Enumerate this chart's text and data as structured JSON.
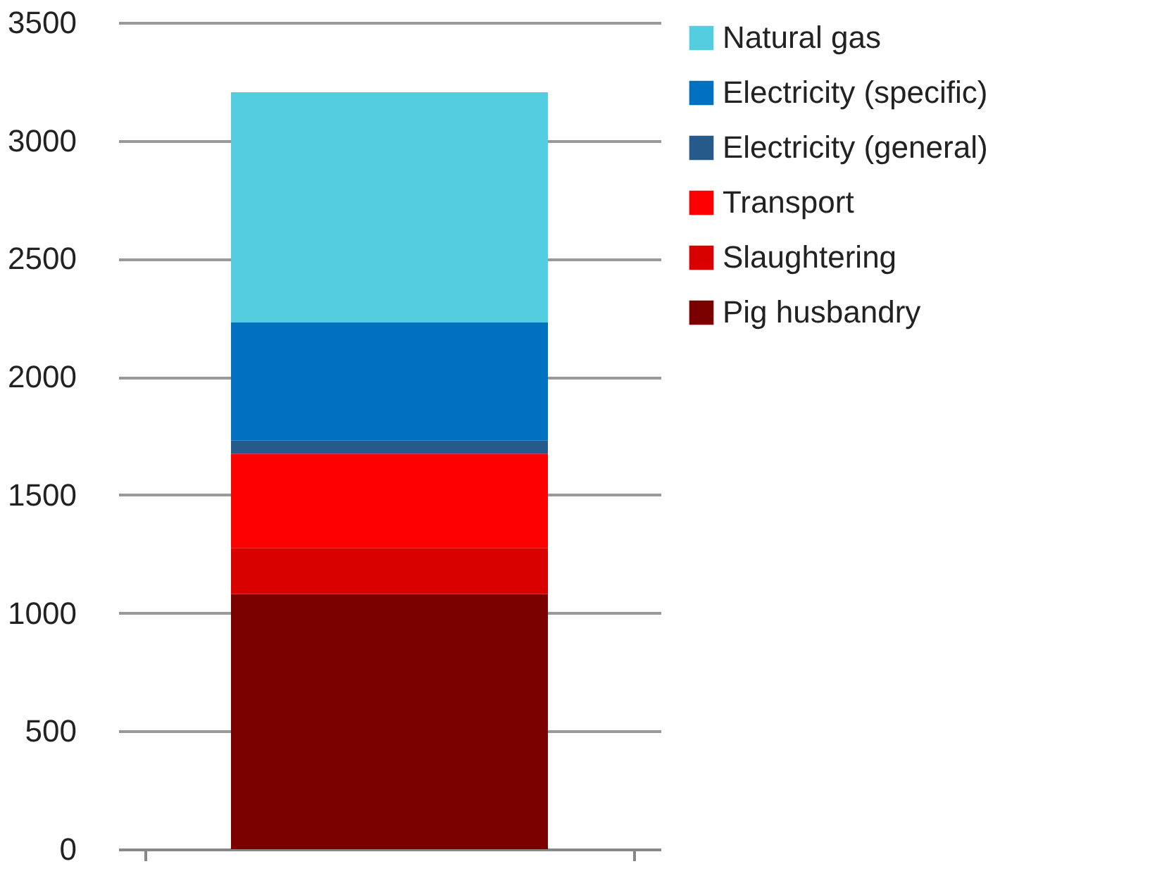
{
  "chart_data": {
    "type": "bar",
    "stacked": true,
    "categories": [
      null
    ],
    "series": [
      {
        "name": "Pig husbandry",
        "color": "#7b0000",
        "values": [
          1080
        ]
      },
      {
        "name": "Slaughtering",
        "color": "#d90000",
        "values": [
          195
        ]
      },
      {
        "name": "Transport",
        "color": "#ff0000",
        "values": [
          400
        ]
      },
      {
        "name": "Electricity (general)",
        "color": "#255a8a",
        "values": [
          55
        ]
      },
      {
        "name": "Electricity (specific)",
        "color": "#0070c0",
        "values": [
          500
        ]
      },
      {
        "name": "Natural gas",
        "color": "#53cde0",
        "values": [
          975
        ]
      }
    ],
    "ylim": [
      0,
      3500
    ],
    "yticks": [
      0,
      500,
      1000,
      1500,
      2000,
      2500,
      3000,
      3500
    ],
    "grid": "y",
    "legend": "right",
    "tick_labels": "y"
  }
}
